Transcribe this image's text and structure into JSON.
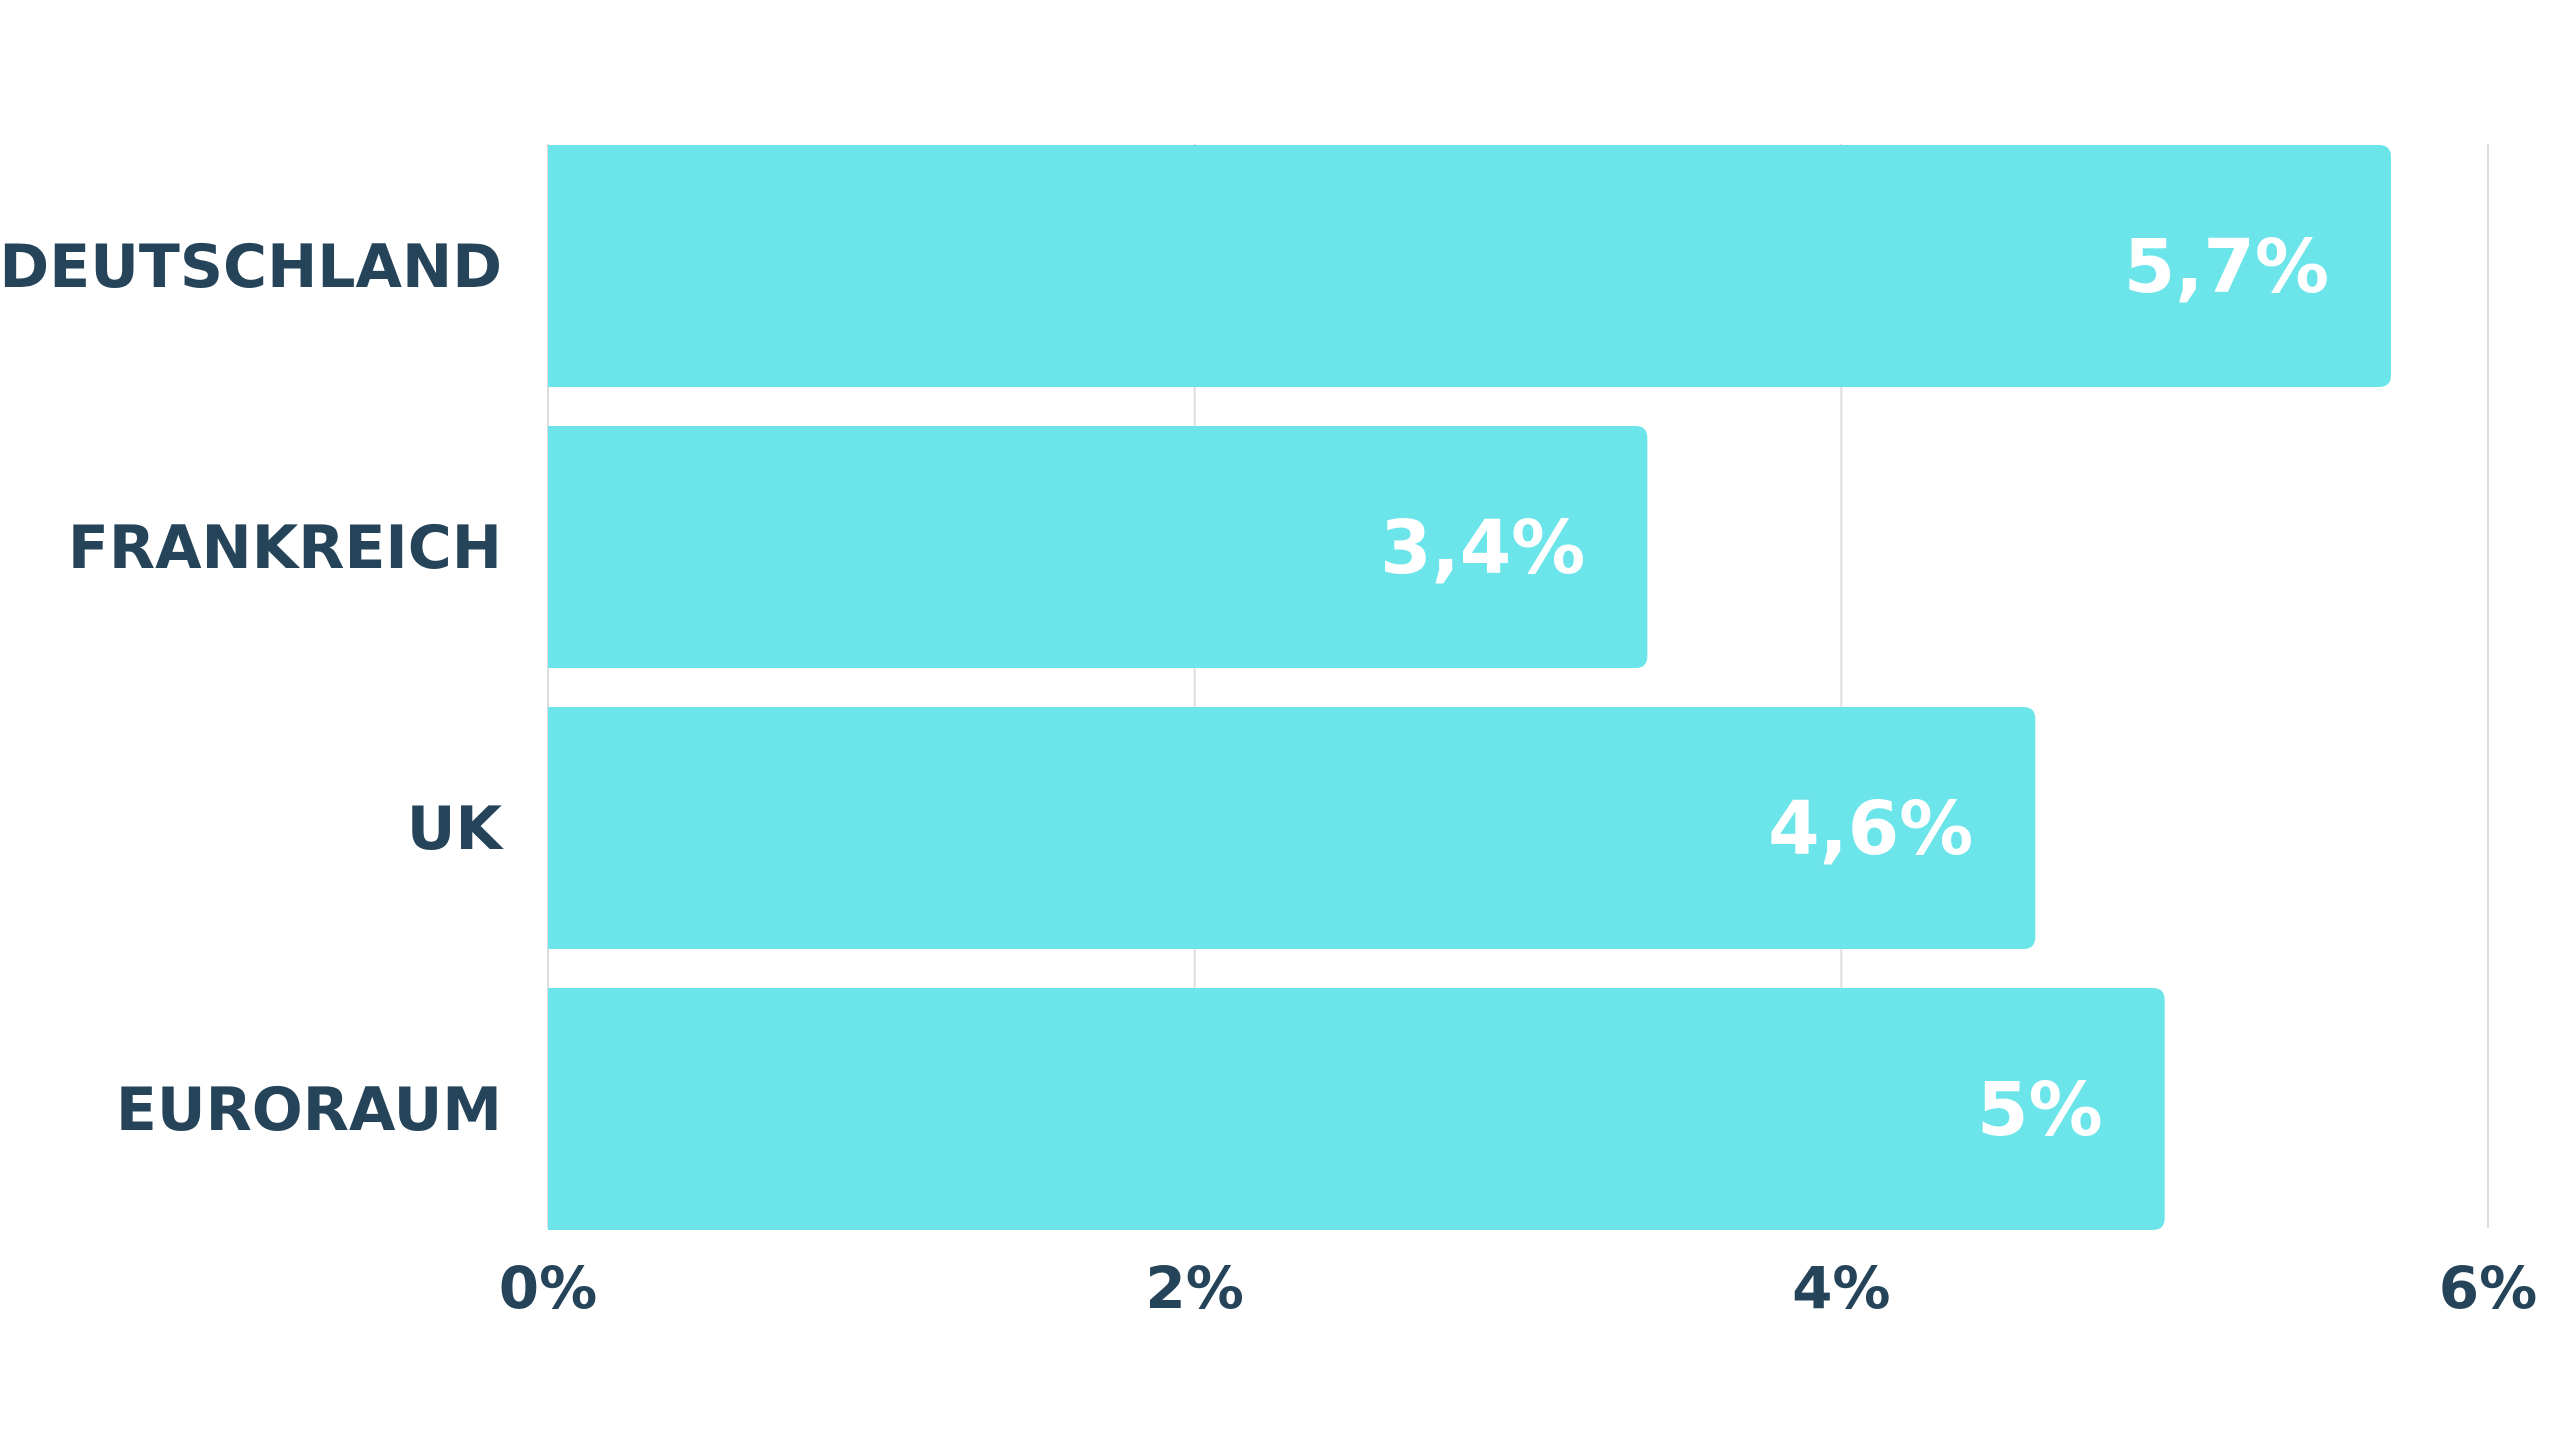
{
  "chart_data": {
    "type": "bar",
    "orientation": "horizontal",
    "categories": [
      "DEUTSCHLAND",
      "FRANKREICH",
      "UK",
      "EURORAUM"
    ],
    "values": [
      5.7,
      3.4,
      4.6,
      5.0
    ],
    "value_labels": [
      "5,7%",
      "3,4%",
      "4,6%",
      "5%"
    ],
    "xlim": [
      0,
      6
    ],
    "x_ticks": [
      0,
      2,
      4,
      6
    ],
    "x_tick_labels": [
      "0%",
      "2%",
      "4%",
      "6%"
    ],
    "grid": true,
    "legend": "none",
    "colors": {
      "bar": "#6be5e9",
      "text": "#25445a",
      "value_text": "#ffffff",
      "grid": "#dddddd"
    }
  }
}
